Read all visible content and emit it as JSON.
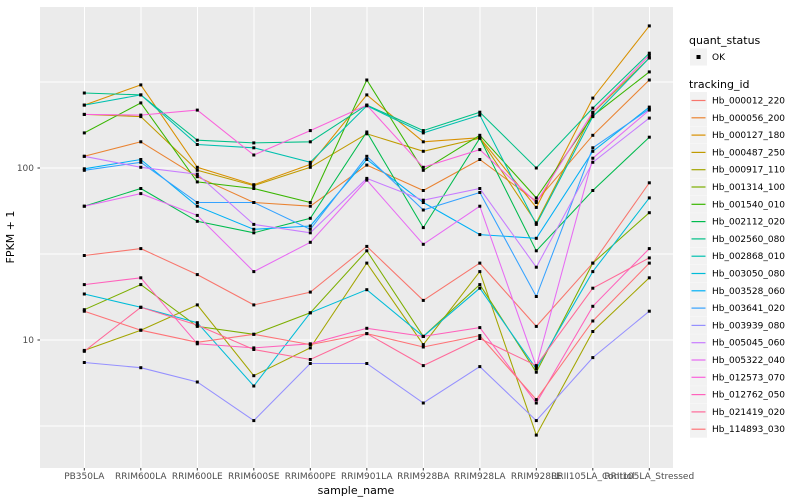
{
  "figure": {
    "background": "#FFFFFF",
    "panel_background": "#EBEBEB",
    "gridline_color": "#FFFFFF",
    "tick_mark_color": "#333333",
    "tick_label_color": "#4D4D4D",
    "axis_title_color": "#000000",
    "legend_key_background": "#F2F2F2",
    "point_marker": "black-square",
    "point_color": "#000000"
  },
  "axes": {
    "x_title": "sample_name",
    "y_title": "FPKM + 1",
    "y_scale": "log10",
    "y_ticks": [
      {
        "label": "100",
        "value": 100
      },
      {
        "label": "10",
        "value": 10
      }
    ]
  },
  "legend": {
    "quant_status_title": "quant_status",
    "quant_status_items": [
      {
        "label": "OK",
        "marker": "black-square-point"
      }
    ],
    "tracking_id_title": "tracking_id"
  },
  "chart_data": {
    "type": "line",
    "title": "",
    "xlabel": "sample_name",
    "ylabel": "FPKM + 1",
    "y_scale": "log10",
    "ylim": [
      1.8,
      870
    ],
    "y_major_gridlines": [
      10,
      100
    ],
    "y_minor_gridlines": [
      3.162,
      31.623,
      316.228
    ],
    "grid": true,
    "legend_position": "right",
    "quant_status_all_points": "OK",
    "categories": [
      "PB350LA",
      "RRIM600LA",
      "RRIM600LE",
      "RRIM600SE",
      "RRIM600PE",
      "RRIM901LA",
      "RRIM928BA",
      "RRIM928LA",
      "RRIM928LE",
      "RRII105LA_Control",
      "RRII105LA_Stressed"
    ],
    "series": [
      {
        "name": "Hb_000012_220",
        "color": "#F8766D",
        "values": [
          31,
          34,
          24,
          16,
          19,
          35,
          17,
          28,
          12,
          28,
          82
        ]
      },
      {
        "name": "Hb_000056_200",
        "color": "#EA8331",
        "values": [
          117,
          142,
          89,
          63,
          60,
          104,
          74,
          112,
          64,
          155,
          325
        ]
      },
      {
        "name": "Hb_000127_180",
        "color": "#D89000",
        "values": [
          232,
          304,
          101,
          80,
          105,
          266,
          142,
          150,
          59,
          255,
          670
        ]
      },
      {
        "name": "Hb_000487_250",
        "color": "#C09B00",
        "values": [
          205,
          199,
          97,
          79,
          101,
          158,
          125,
          149,
          48,
          209,
          436
        ]
      },
      {
        "name": "Hb_000917_110",
        "color": "#A3A500",
        "values": [
          8.7,
          11.4,
          16,
          6.2,
          9,
          28,
          9.4,
          25,
          2.8,
          11.2,
          23
        ]
      },
      {
        "name": "Hb_001314_100",
        "color": "#7CAE00",
        "values": [
          15,
          21,
          12,
          10.8,
          14.4,
          33,
          10.5,
          21,
          6.5,
          28,
          55
        ]
      },
      {
        "name": "Hb_001540_010",
        "color": "#39B600",
        "values": [
          160,
          239,
          83,
          76,
          63,
          325,
          97,
          155,
          67,
          201,
          362
        ]
      },
      {
        "name": "Hb_002112_020",
        "color": "#00BB4E",
        "values": [
          60,
          76,
          49,
          42,
          51,
          162,
          45,
          149,
          33,
          74,
          151
        ]
      },
      {
        "name": "Hb_002560_080",
        "color": "#00C087",
        "values": [
          273,
          266,
          145,
          140,
          142,
          232,
          165,
          211,
          100,
          223,
          465
        ]
      },
      {
        "name": "Hb_002868_010",
        "color": "#00C0AF",
        "values": [
          232,
          266,
          137,
          131,
          108,
          230,
          160,
          203,
          47,
          199,
          436
        ]
      },
      {
        "name": "Hb_003050_080",
        "color": "#00BCD8",
        "values": [
          18.5,
          15.5,
          12.6,
          5.4,
          14.4,
          19.6,
          10.5,
          20,
          6.8,
          25,
          67
        ]
      },
      {
        "name": "Hb_003528_060",
        "color": "#00B0F6",
        "values": [
          99,
          112,
          60,
          44,
          46,
          112,
          63,
          41,
          39,
          125,
          226
        ]
      },
      {
        "name": "Hb_003641_020",
        "color": "#35A2FF",
        "values": [
          97,
          108,
          63,
          63,
          44,
          117,
          57,
          72,
          17.9,
          131,
          220
        ]
      },
      {
        "name": "Hb_003939_080",
        "color": "#9590FF",
        "values": [
          7.4,
          6.9,
          5.7,
          3.4,
          7.3,
          7.3,
          4.3,
          7.0,
          3.4,
          7.9,
          14.7
        ]
      },
      {
        "name": "Hb_005045_060",
        "color": "#C77CFF",
        "values": [
          117,
          101,
          92,
          47,
          42,
          87,
          65,
          76,
          26.5,
          108,
          195
        ]
      },
      {
        "name": "Hb_005322_040",
        "color": "#E76BF3",
        "values": [
          60,
          71,
          53,
          25,
          37,
          85,
          36,
          60,
          7.0,
          114,
          217
        ]
      },
      {
        "name": "Hb_012573_070",
        "color": "#FA62DB",
        "values": [
          205,
          203,
          217,
          119,
          165,
          232,
          101,
          128,
          63,
          211,
          452
        ]
      },
      {
        "name": "Hb_012762_050",
        "color": "#FF62BC",
        "values": [
          21,
          23,
          9.5,
          9.0,
          9.5,
          11.7,
          10.5,
          11.8,
          4.3,
          15.7,
          34
        ]
      },
      {
        "name": "Hb_021419_020",
        "color": "#FF6A9A",
        "values": [
          8.6,
          15.5,
          12.2,
          8.8,
          7.7,
          10.9,
          7.1,
          10.2,
          7.1,
          20,
          30
        ]
      },
      {
        "name": "Hb_114893_030",
        "color": "#FE7377",
        "values": [
          14.7,
          11.4,
          9.7,
          10.8,
          9.4,
          10.9,
          9.1,
          10.6,
          4.5,
          12.9,
          28
        ]
      }
    ]
  }
}
